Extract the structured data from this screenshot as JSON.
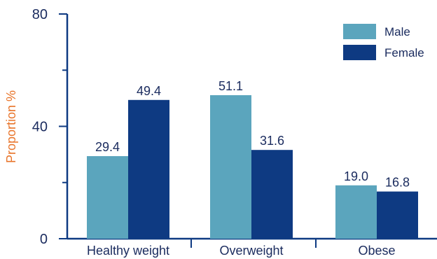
{
  "chart_data": {
    "type": "bar",
    "categories": [
      "Healthy weight",
      "Overweight",
      "Obese"
    ],
    "series": [
      {
        "name": "Male",
        "values": [
          29.4,
          51.1,
          19.0
        ],
        "labels": [
          "29.4",
          "51.1",
          "19.0"
        ]
      },
      {
        "name": "Female",
        "values": [
          49.4,
          31.6,
          16.8
        ],
        "labels": [
          "49.4",
          "31.6",
          "16.8"
        ]
      }
    ],
    "ylabel": "Proportion %",
    "xlabel": "",
    "title": "",
    "ylim": [
      0,
      80
    ],
    "yticks": [
      0,
      40,
      80
    ],
    "ytick_labels": [
      "0",
      "40",
      "80"
    ],
    "legend_position": "top-right",
    "grid": false
  },
  "colors": {
    "male": "#5ba5bd",
    "female": "#0e3a82",
    "axis": "#0e3a82",
    "ylabel": "#e8742a",
    "text": "#1a2b5e"
  }
}
